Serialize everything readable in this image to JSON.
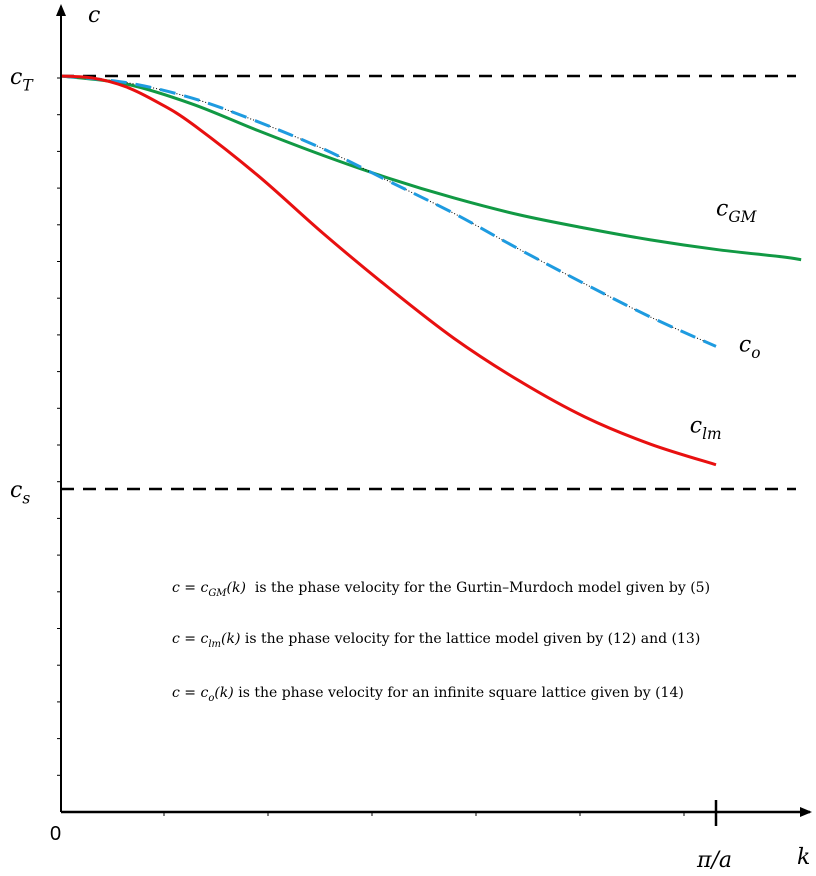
{
  "chart_data": {
    "type": "line",
    "title": "",
    "xlabel": "k",
    "ylabel": "c",
    "xlim": [
      0,
      1.13
    ],
    "ylim": [
      0,
      1.0
    ],
    "origin_label": "0",
    "x_tick_label": {
      "value": 1.0,
      "label": "π/a"
    },
    "reference_lines": [
      {
        "name": "c_T",
        "label_base": "c",
        "label_sub": "T",
        "y": 1.0,
        "style": "dashed",
        "color": "#000000"
      },
      {
        "name": "c_s",
        "label_base": "c",
        "label_sub": "s",
        "y": 0.438,
        "style": "dashed",
        "color": "#000000"
      }
    ],
    "series": [
      {
        "name": "c_GM",
        "label_base": "c",
        "label_sub": "GM",
        "color": "#119944",
        "style": "solid",
        "label_at": [
          1.0,
          0.81
        ],
        "x": [
          0,
          0.1,
          0.2,
          0.3,
          0.4,
          0.5,
          0.6,
          0.7,
          0.8,
          0.9,
          1.0,
          1.1,
          1.13
        ],
        "y": [
          1.0,
          0.989,
          0.962,
          0.926,
          0.892,
          0.861,
          0.834,
          0.811,
          0.793,
          0.777,
          0.764,
          0.754,
          0.75
        ]
      },
      {
        "name": "c_o",
        "label_base": "c",
        "label_sub": "o",
        "color": "#1e9be0",
        "style": "dashed",
        "label_at": [
          1.035,
          0.625
        ],
        "x": [
          0,
          0.1,
          0.2,
          0.3,
          0.4,
          0.5,
          0.6,
          0.7,
          0.8,
          0.9,
          1.0
        ],
        "y": [
          1.0,
          0.991,
          0.97,
          0.938,
          0.901,
          0.857,
          0.813,
          0.764,
          0.717,
          0.672,
          0.632
        ]
      },
      {
        "name": "c_lm",
        "label_base": "c",
        "label_sub": "lm",
        "color": "#e81010",
        "style": "solid",
        "label_at": [
          0.96,
          0.515
        ],
        "x": [
          0,
          0.05,
          0.1,
          0.15,
          0.2,
          0.3,
          0.4,
          0.5,
          0.6,
          0.7,
          0.8,
          0.9,
          1.0
        ],
        "y": [
          1.0,
          0.997,
          0.985,
          0.963,
          0.935,
          0.865,
          0.786,
          0.712,
          0.643,
          0.585,
          0.536,
          0.499,
          0.471
        ]
      }
    ],
    "annotations": [
      {
        "math": "c = c",
        "sub": "GM",
        "tail": "(k)",
        "text": "  is the phase velocity for the Gurtin–Murdoch model given by (5)"
      },
      {
        "math": "c = c",
        "sub": "lm",
        "tail": "(k)",
        "text": " is the phase velocity for the lattice model given by (12) and (13)"
      },
      {
        "math": "c = c",
        "sub": "o",
        "tail": "(k)",
        "text": " is the phase velocity for an infinite square lattice given by (14)"
      }
    ]
  }
}
